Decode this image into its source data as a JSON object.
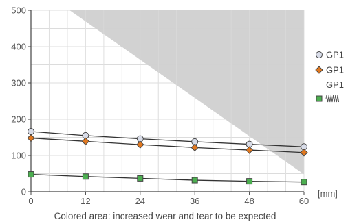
{
  "chart_data": {
    "type": "line",
    "caption": "Colored area: increased wear and tear to be expected",
    "x_unit": "[mm]",
    "x": [
      0,
      12,
      24,
      36,
      48,
      60
    ],
    "xlim": [
      0,
      60
    ],
    "ylim": [
      0,
      500
    ],
    "x_ticks": [
      0,
      12,
      24,
      36,
      48,
      60
    ],
    "y_ticks": [
      0,
      100,
      200,
      300,
      400,
      500
    ],
    "grid": true,
    "legend_position": "right",
    "series": [
      {
        "name": "GP1",
        "marker": "circle",
        "color": "#d8dce8",
        "values": [
          166,
          155,
          146,
          138,
          131,
          124
        ]
      },
      {
        "name": "GP1",
        "marker": "diamond",
        "color": "#e07820",
        "values": [
          148,
          139,
          130,
          122,
          115,
          108
        ]
      },
      {
        "name": "GP1",
        "marker": "square",
        "color": "#4caf50",
        "legend_suffix": "spring-icon",
        "values": [
          48,
          42,
          37,
          32,
          29,
          27
        ]
      }
    ],
    "wear_zone": {
      "color": "#d0d0d0",
      "boundary": [
        [
          8.5,
          500
        ],
        [
          60,
          48
        ]
      ]
    }
  }
}
